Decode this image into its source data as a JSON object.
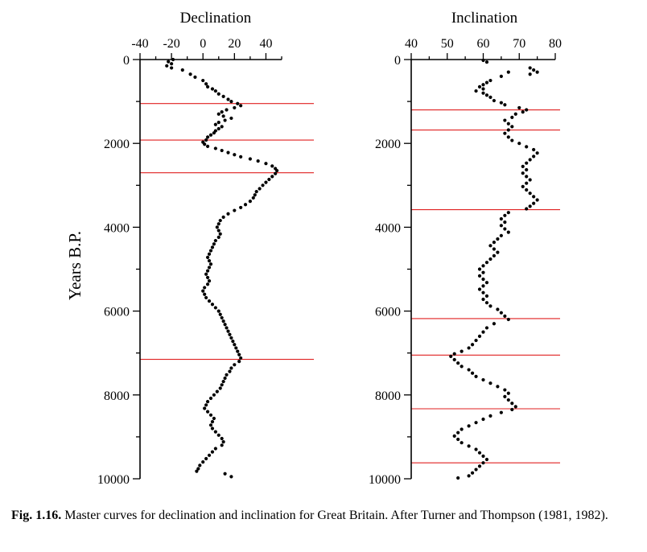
{
  "caption": {
    "number": "Fig. 1.16.",
    "text": "Master curves for declination and inclination for Great Britain. After Turner and Thompson (1981, 1982)."
  },
  "colors": {
    "marker_lines": "#e02020",
    "points": "#000000",
    "axes": "#000000"
  },
  "chart_data": [
    {
      "type": "scatter",
      "title": "",
      "xlabel": "Declination",
      "ylabel": "Years B.P.",
      "xlim": [
        -40,
        50
      ],
      "ylim": [
        0,
        10000
      ],
      "y_inverted": true,
      "x_axis_position": "top",
      "xticks": [
        -40,
        -20,
        0,
        20,
        40
      ],
      "yticks": [
        0,
        2000,
        4000,
        6000,
        8000,
        10000
      ],
      "marker_lines_years": [
        1050,
        1920,
        2700,
        7150
      ],
      "points": [
        [
          -19,
          0
        ],
        [
          -22,
          50
        ],
        [
          -20,
          100
        ],
        [
          -23,
          150
        ],
        [
          -20,
          200
        ],
        [
          -13,
          250
        ],
        [
          -8,
          350
        ],
        [
          -5,
          420
        ],
        [
          0,
          500
        ],
        [
          2,
          580
        ],
        [
          3,
          650
        ],
        [
          6,
          700
        ],
        [
          8,
          750
        ],
        [
          10,
          820
        ],
        [
          13,
          880
        ],
        [
          16,
          950
        ],
        [
          18,
          1000
        ],
        [
          22,
          1050
        ],
        [
          24,
          1100
        ],
        [
          20,
          1150
        ],
        [
          15,
          1200
        ],
        [
          12,
          1250
        ],
        [
          10,
          1300
        ],
        [
          13,
          1350
        ],
        [
          18,
          1400
        ],
        [
          14,
          1450
        ],
        [
          10,
          1500
        ],
        [
          8,
          1550
        ],
        [
          12,
          1600
        ],
        [
          10,
          1650
        ],
        [
          8,
          1700
        ],
        [
          7,
          1750
        ],
        [
          5,
          1800
        ],
        [
          3,
          1850
        ],
        [
          2,
          1920
        ],
        [
          0,
          1970
        ],
        [
          1,
          2020
        ],
        [
          3,
          2070
        ],
        [
          8,
          2120
        ],
        [
          12,
          2170
        ],
        [
          16,
          2220
        ],
        [
          20,
          2270
        ],
        [
          24,
          2320
        ],
        [
          30,
          2370
        ],
        [
          35,
          2420
        ],
        [
          40,
          2480
        ],
        [
          44,
          2540
        ],
        [
          46,
          2600
        ],
        [
          47,
          2650
        ],
        [
          46,
          2720
        ],
        [
          44,
          2790
        ],
        [
          42,
          2860
        ],
        [
          40,
          2930
        ],
        [
          38,
          3000
        ],
        [
          36,
          3080
        ],
        [
          34,
          3150
        ],
        [
          33,
          3230
        ],
        [
          32,
          3300
        ],
        [
          30,
          3380
        ],
        [
          27,
          3460
        ],
        [
          24,
          3530
        ],
        [
          20,
          3600
        ],
        [
          16,
          3680
        ],
        [
          13,
          3760
        ],
        [
          11,
          3840
        ],
        [
          10,
          3920
        ],
        [
          9,
          4000
        ],
        [
          10,
          4080
        ],
        [
          11,
          4160
        ],
        [
          10,
          4240
        ],
        [
          8,
          4320
        ],
        [
          7,
          4400
        ],
        [
          6,
          4480
        ],
        [
          5,
          4560
        ],
        [
          4,
          4640
        ],
        [
          3,
          4720
        ],
        [
          4,
          4800
        ],
        [
          5,
          4880
        ],
        [
          4,
          4960
        ],
        [
          3,
          5040
        ],
        [
          2,
          5120
        ],
        [
          3,
          5200
        ],
        [
          4,
          5280
        ],
        [
          3,
          5360
        ],
        [
          1,
          5440
        ],
        [
          0,
          5520
        ],
        [
          1,
          5600
        ],
        [
          2,
          5680
        ],
        [
          4,
          5760
        ],
        [
          6,
          5840
        ],
        [
          8,
          5920
        ],
        [
          10,
          6000
        ],
        [
          11,
          6080
        ],
        [
          12,
          6160
        ],
        [
          13,
          6240
        ],
        [
          14,
          6320
        ],
        [
          15,
          6400
        ],
        [
          16,
          6480
        ],
        [
          17,
          6560
        ],
        [
          18,
          6640
        ],
        [
          19,
          6720
        ],
        [
          20,
          6800
        ],
        [
          21,
          6880
        ],
        [
          22,
          6960
        ],
        [
          23,
          7040
        ],
        [
          24,
          7120
        ],
        [
          23,
          7200
        ],
        [
          20,
          7280
        ],
        [
          18,
          7360
        ],
        [
          17,
          7440
        ],
        [
          15,
          7520
        ],
        [
          14,
          7600
        ],
        [
          13,
          7680
        ],
        [
          12,
          7760
        ],
        [
          11,
          7840
        ],
        [
          9,
          7920
        ],
        [
          7,
          8000
        ],
        [
          5,
          8080
        ],
        [
          3,
          8160
        ],
        [
          2,
          8240
        ],
        [
          1,
          8320
        ],
        [
          3,
          8400
        ],
        [
          5,
          8480
        ],
        [
          7,
          8560
        ],
        [
          6,
          8640
        ],
        [
          5,
          8720
        ],
        [
          6,
          8800
        ],
        [
          8,
          8880
        ],
        [
          10,
          8960
        ],
        [
          12,
          9040
        ],
        [
          13,
          9120
        ],
        [
          12,
          9200
        ],
        [
          8,
          9280
        ],
        [
          6,
          9360
        ],
        [
          4,
          9440
        ],
        [
          2,
          9520
        ],
        [
          0,
          9600
        ],
        [
          -2,
          9680
        ],
        [
          -3,
          9760
        ],
        [
          -4,
          9820
        ],
        [
          14,
          9880
        ],
        [
          18,
          9950
        ]
      ]
    },
    {
      "type": "scatter",
      "title": "",
      "xlabel": "Inclination",
      "ylabel": "",
      "xlim": [
        40,
        80
      ],
      "ylim": [
        0,
        10000
      ],
      "y_inverted": true,
      "x_axis_position": "top",
      "xticks": [
        40,
        50,
        60,
        70,
        80
      ],
      "yticks": [
        0,
        2000,
        4000,
        6000,
        8000,
        10000
      ],
      "marker_lines_years": [
        1200,
        1680,
        3580,
        6180,
        7050,
        8330,
        9620
      ],
      "points": [
        [
          60,
          20
        ],
        [
          61,
          60
        ],
        [
          73,
          200
        ],
        [
          74,
          250
        ],
        [
          75,
          300
        ],
        [
          73,
          350
        ],
        [
          67,
          300
        ],
        [
          65,
          400
        ],
        [
          62,
          500
        ],
        [
          61,
          550
        ],
        [
          60,
          600
        ],
        [
          59,
          650
        ],
        [
          60,
          700
        ],
        [
          58,
          750
        ],
        [
          60,
          800
        ],
        [
          61,
          850
        ],
        [
          62,
          900
        ],
        [
          63,
          980
        ],
        [
          65,
          1030
        ],
        [
          66,
          1080
        ],
        [
          70,
          1150
        ],
        [
          72,
          1200
        ],
        [
          71,
          1250
        ],
        [
          69,
          1300
        ],
        [
          68,
          1380
        ],
        [
          66,
          1450
        ],
        [
          67,
          1530
        ],
        [
          68,
          1600
        ],
        [
          67,
          1680
        ],
        [
          66,
          1760
        ],
        [
          67,
          1850
        ],
        [
          68,
          1930
        ],
        [
          70,
          2000
        ],
        [
          72,
          2080
        ],
        [
          74,
          2150
        ],
        [
          75,
          2230
        ],
        [
          74,
          2310
        ],
        [
          73,
          2390
        ],
        [
          72,
          2470
        ],
        [
          71,
          2550
        ],
        [
          72,
          2630
        ],
        [
          71,
          2710
        ],
        [
          72,
          2790
        ],
        [
          73,
          2870
        ],
        [
          72,
          2950
        ],
        [
          71,
          3030
        ],
        [
          72,
          3110
        ],
        [
          73,
          3190
        ],
        [
          74,
          3270
        ],
        [
          75,
          3350
        ],
        [
          74,
          3430
        ],
        [
          73,
          3500
        ],
        [
          72,
          3560
        ],
        [
          67,
          3650
        ],
        [
          66,
          3720
        ],
        [
          65,
          3800
        ],
        [
          66,
          3880
        ],
        [
          65,
          3960
        ],
        [
          66,
          4040
        ],
        [
          67,
          4120
        ],
        [
          65,
          4200
        ],
        [
          64,
          4280
        ],
        [
          63,
          4360
        ],
        [
          62,
          4440
        ],
        [
          63,
          4520
        ],
        [
          64,
          4600
        ],
        [
          63,
          4680
        ],
        [
          62,
          4760
        ],
        [
          61,
          4840
        ],
        [
          60,
          4920
        ],
        [
          59,
          5000
        ],
        [
          60,
          5080
        ],
        [
          59,
          5160
        ],
        [
          60,
          5240
        ],
        [
          61,
          5320
        ],
        [
          60,
          5400
        ],
        [
          59,
          5480
        ],
        [
          60,
          5560
        ],
        [
          61,
          5640
        ],
        [
          60,
          5720
        ],
        [
          61,
          5800
        ],
        [
          62,
          5880
        ],
        [
          64,
          5960
        ],
        [
          65,
          6040
        ],
        [
          66,
          6120
        ],
        [
          67,
          6200
        ],
        [
          63,
          6300
        ],
        [
          61,
          6400
        ],
        [
          60,
          6500
        ],
        [
          59,
          6600
        ],
        [
          58,
          6700
        ],
        [
          57,
          6800
        ],
        [
          56,
          6880
        ],
        [
          54,
          6960
        ],
        [
          52,
          7020
        ],
        [
          51,
          7080
        ],
        [
          52,
          7160
        ],
        [
          53,
          7240
        ],
        [
          54,
          7320
        ],
        [
          56,
          7400
        ],
        [
          57,
          7480
        ],
        [
          58,
          7560
        ],
        [
          60,
          7640
        ],
        [
          62,
          7720
        ],
        [
          64,
          7800
        ],
        [
          66,
          7880
        ],
        [
          67,
          7960
        ],
        [
          66,
          8040
        ],
        [
          67,
          8120
        ],
        [
          68,
          8200
        ],
        [
          69,
          8280
        ],
        [
          68,
          8350
        ],
        [
          65,
          8420
        ],
        [
          62,
          8500
        ],
        [
          60,
          8580
        ],
        [
          58,
          8660
        ],
        [
          56,
          8740
        ],
        [
          54,
          8820
        ],
        [
          53,
          8900
        ],
        [
          52,
          8980
        ],
        [
          53,
          9060
        ],
        [
          54,
          9140
        ],
        [
          56,
          9220
        ],
        [
          58,
          9300
        ],
        [
          59,
          9380
        ],
        [
          60,
          9460
        ],
        [
          61,
          9540
        ],
        [
          60,
          9620
        ],
        [
          59,
          9700
        ],
        [
          58,
          9780
        ],
        [
          57,
          9860
        ],
        [
          56,
          9930
        ],
        [
          53,
          9980
        ]
      ]
    }
  ]
}
